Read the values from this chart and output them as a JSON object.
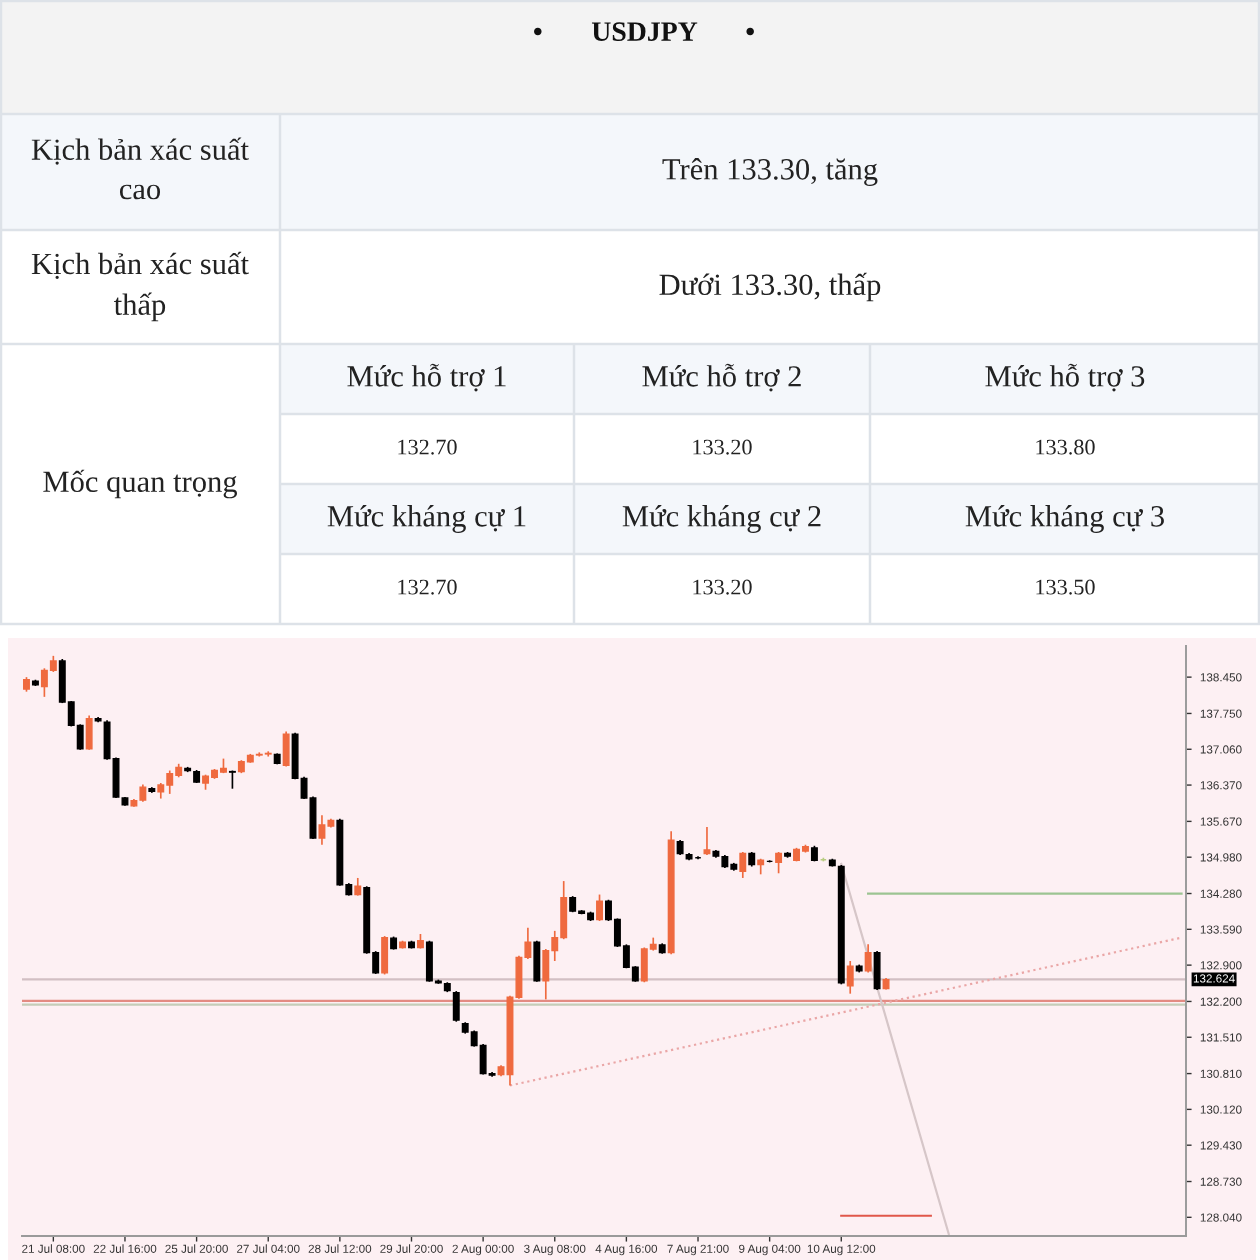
{
  "chart_data": [
    {
      "type": "other",
      "title": "•       USDJPY       •",
      "annotations": [
        "Kịch bản xác suất cao",
        "Trên 133.30, tăng",
        "Kịch bản xác suất thấp",
        "Dưới 133.30, thấp",
        "Mốc quan trọng",
        "Mức hỗ trợ 1",
        "Mức hỗ trợ 2",
        "Mức hỗ trợ 3",
        "132.70",
        "133.20",
        "133.80",
        "Mức kháng cự 1",
        "Mức kháng cự 2",
        "Mức kháng cự 3",
        "132.70",
        "133.20",
        "133.50"
      ]
    },
    {
      "type": "candlestick",
      "categories": [
        null,
        null,
        null,
        "21 Jul 08:00",
        null,
        null,
        null,
        null,
        null,
        null,
        null,
        "22 Jul 16:00",
        null,
        null,
        null,
        null,
        null,
        null,
        null,
        "25 Jul 20:00",
        null,
        null,
        null,
        null,
        null,
        null,
        null,
        "27 Jul 04:00",
        null,
        null,
        null,
        null,
        null,
        null,
        null,
        "28 Jul 12:00",
        null,
        null,
        null,
        null,
        null,
        null,
        null,
        "29 Jul 20:00",
        null,
        null,
        null,
        null,
        null,
        null,
        null,
        "2 Aug 00:00",
        null,
        null,
        null,
        null,
        null,
        null,
        null,
        "3 Aug 08:00",
        null,
        null,
        null,
        null,
        null,
        null,
        null,
        "4 Aug 16:00",
        null,
        null,
        null,
        null,
        null,
        null,
        null,
        "7 Aug 21:00",
        null,
        null,
        null,
        null,
        null,
        null,
        null,
        "9 Aug 04:00",
        null,
        null,
        null,
        null,
        null,
        null,
        null,
        "10 Aug 12:00",
        null,
        null,
        null,
        null,
        null,
        null,
        null,
        null,
        null,
        null,
        null,
        null,
        null,
        null,
        null,
        null,
        null,
        null,
        null,
        null,
        null,
        null,
        null,
        null,
        null,
        null,
        null,
        null,
        null,
        null,
        null,
        null,
        null,
        null,
        null,
        null,
        null,
        null
      ],
      "ohlc": [
        [
          138.22,
          138.45,
          138.17,
          138.4
        ],
        [
          138.37,
          138.4,
          138.28,
          138.3
        ],
        [
          138.27,
          138.62,
          138.07,
          138.58
        ],
        [
          138.58,
          138.86,
          138.55,
          138.76
        ],
        [
          138.76,
          138.8,
          137.95,
          137.97
        ],
        [
          137.97,
          137.99,
          137.5,
          137.52
        ],
        [
          137.52,
          137.54,
          137.05,
          137.07
        ],
        [
          137.07,
          137.71,
          137.05,
          137.65
        ],
        [
          137.65,
          137.68,
          137.58,
          137.61
        ],
        [
          137.58,
          137.62,
          136.86,
          136.88
        ],
        [
          136.88,
          136.9,
          136.12,
          136.14
        ],
        [
          136.12,
          136.14,
          135.97,
          135.99
        ],
        [
          135.97,
          136.1,
          135.95,
          136.07
        ],
        [
          136.08,
          136.38,
          136.05,
          136.33
        ],
        [
          136.3,
          136.33,
          136.22,
          136.25
        ],
        [
          136.24,
          136.41,
          136.11,
          136.37
        ],
        [
          136.37,
          136.65,
          136.2,
          136.59
        ],
        [
          136.56,
          136.78,
          136.52,
          136.71
        ],
        [
          136.69,
          136.72,
          136.62,
          136.65
        ],
        [
          136.63,
          136.66,
          136.41,
          136.43
        ],
        [
          136.41,
          136.57,
          136.28,
          136.54
        ],
        [
          136.52,
          136.68,
          136.49,
          136.65
        ],
        [
          136.62,
          136.88,
          136.6,
          136.69
        ],
        [
          136.63,
          136.65,
          136.3,
          136.62
        ],
        [
          136.63,
          136.85,
          136.6,
          136.82
        ],
        [
          136.82,
          136.97,
          136.8,
          136.94
        ],
        [
          136.95,
          137.0,
          136.92,
          136.96
        ],
        [
          136.97,
          137.02,
          136.92,
          136.98
        ],
        [
          136.96,
          136.98,
          136.77,
          136.79
        ],
        [
          136.75,
          137.4,
          136.73,
          137.35
        ],
        [
          137.35,
          137.38,
          136.48,
          136.5
        ],
        [
          136.5,
          136.53,
          136.1,
          136.12
        ],
        [
          136.12,
          136.15,
          135.33,
          135.35
        ],
        [
          135.35,
          135.79,
          135.22,
          135.6
        ],
        [
          135.58,
          135.72,
          135.55,
          135.69
        ],
        [
          135.69,
          135.72,
          134.43,
          134.45
        ],
        [
          134.45,
          134.48,
          134.24,
          134.26
        ],
        [
          134.26,
          134.58,
          134.24,
          134.42
        ],
        [
          134.39,
          134.42,
          133.12,
          133.14
        ],
        [
          133.14,
          133.17,
          132.73,
          132.75
        ],
        [
          132.75,
          133.46,
          132.72,
          133.43
        ],
        [
          133.42,
          133.45,
          133.2,
          133.22
        ],
        [
          133.24,
          133.37,
          133.22,
          133.34
        ],
        [
          133.34,
          133.37,
          133.22,
          133.24
        ],
        [
          133.24,
          133.5,
          133.22,
          133.37
        ],
        [
          133.34,
          133.37,
          132.58,
          132.6
        ],
        [
          132.59,
          132.62,
          132.54,
          132.56
        ],
        [
          132.54,
          132.57,
          132.38,
          132.41
        ],
        [
          132.37,
          132.4,
          131.81,
          131.84
        ],
        [
          131.77,
          131.8,
          131.58,
          131.61
        ],
        [
          131.61,
          131.64,
          131.33,
          131.35
        ],
        [
          131.35,
          131.38,
          130.79,
          130.81
        ],
        [
          130.81,
          130.84,
          130.75,
          130.78
        ],
        [
          130.79,
          130.97,
          130.76,
          130.94
        ],
        [
          130.79,
          132.31,
          130.58,
          132.28
        ],
        [
          132.28,
          133.08,
          132.25,
          133.05
        ],
        [
          133.05,
          133.62,
          133.02,
          133.34
        ],
        [
          133.34,
          133.37,
          132.58,
          132.6
        ],
        [
          132.6,
          133.21,
          132.24,
          133.18
        ],
        [
          133.18,
          133.56,
          132.98,
          133.43
        ],
        [
          133.43,
          134.52,
          133.4,
          134.2
        ],
        [
          134.2,
          134.23,
          133.92,
          133.94
        ],
        [
          133.94,
          133.96,
          133.88,
          133.9
        ],
        [
          133.9,
          133.93,
          133.75,
          133.78
        ],
        [
          133.78,
          134.26,
          133.75,
          134.13
        ],
        [
          134.13,
          134.16,
          133.75,
          133.78
        ],
        [
          133.78,
          133.8,
          133.25,
          133.27
        ],
        [
          133.27,
          133.3,
          132.84,
          132.86
        ],
        [
          132.86,
          132.88,
          132.58,
          132.6
        ],
        [
          132.6,
          133.24,
          132.57,
          133.21
        ],
        [
          133.21,
          133.43,
          133.18,
          133.3
        ],
        [
          133.29,
          133.32,
          133.12,
          133.14
        ],
        [
          133.14,
          135.48,
          133.11,
          135.31
        ],
        [
          135.28,
          135.31,
          135.02,
          135.05
        ],
        [
          135.03,
          135.06,
          134.92,
          134.95
        ],
        [
          134.97,
          135.0,
          134.94,
          134.97
        ],
        [
          135.05,
          135.56,
          135.02,
          135.12
        ],
        [
          135.09,
          135.12,
          134.97,
          135.0
        ],
        [
          134.99,
          135.02,
          134.77,
          134.8
        ],
        [
          134.84,
          134.87,
          134.72,
          134.75
        ],
        [
          134.71,
          135.08,
          134.58,
          135.05
        ],
        [
          135.05,
          135.08,
          134.8,
          134.84
        ],
        [
          134.84,
          134.95,
          134.65,
          134.92
        ],
        [
          134.9,
          134.92,
          134.88,
          134.9
        ],
        [
          134.88,
          135.08,
          134.67,
          135.05
        ],
        [
          135.05,
          135.08,
          134.97,
          135.0
        ],
        [
          134.92,
          135.16,
          134.9,
          135.13
        ],
        [
          135.1,
          135.22,
          135.07,
          135.18
        ],
        [
          135.16,
          135.2,
          134.9,
          134.92
        ],
        [
          134.93,
          134.97,
          134.9,
          134.93
        ],
        [
          134.92,
          134.95,
          134.8,
          134.82
        ],
        [
          134.8,
          134.83,
          132.53,
          132.56
        ],
        [
          132.5,
          132.98,
          132.35,
          132.88
        ],
        [
          132.88,
          132.91,
          132.76,
          132.79
        ],
        [
          132.79,
          133.3,
          132.76,
          133.14
        ],
        [
          133.14,
          133.17,
          132.42,
          132.45
        ],
        [
          132.45,
          132.65,
          132.43,
          132.62
        ],
        null,
        null,
        null,
        null,
        null,
        null,
        null,
        null,
        null,
        null,
        null,
        null,
        null,
        null,
        null,
        null,
        null,
        null,
        null,
        null,
        null,
        null,
        null,
        null,
        null,
        null,
        null,
        null,
        null,
        null,
        null,
        null,
        null
      ],
      "colors": [
        "#ef6a3f",
        "#000000",
        "#ef6a3f",
        "#ef6a3f",
        "#000000",
        "#000000",
        "#000000",
        "#ef6a3f",
        "#000000",
        "#000000",
        "#000000",
        "#000000",
        "#ef6a3f",
        "#ef6a3f",
        "#000000",
        "#ef6a3f",
        "#ef6a3f",
        "#ef6a3f",
        "#000000",
        "#000000",
        "#ef6a3f",
        "#ef6a3f",
        "#ef6a3f",
        "#000000",
        "#ef6a3f",
        "#ef6a3f",
        "#ef6a3f",
        "#ef6a3f",
        "#000000",
        "#ef6a3f",
        "#000000",
        "#000000",
        "#000000",
        "#ef6a3f",
        "#ef6a3f",
        "#000000",
        "#000000",
        "#ef6a3f",
        "#000000",
        "#000000",
        "#ef6a3f",
        "#000000",
        "#ef6a3f",
        "#000000",
        "#ef6a3f",
        "#000000",
        "#000000",
        "#000000",
        "#000000",
        "#000000",
        "#000000",
        "#000000",
        "#000000",
        "#ef6a3f",
        "#ef6a3f",
        "#ef6a3f",
        "#ef6a3f",
        "#000000",
        "#ef6a3f",
        "#ef6a3f",
        "#ef6a3f",
        "#000000",
        "#000000",
        "#000000",
        "#ef6a3f",
        "#000000",
        "#000000",
        "#000000",
        "#000000",
        "#ef6a3f",
        "#ef6a3f",
        "#000000",
        "#ef6a3f",
        "#000000",
        "#000000",
        "#000000",
        "#ef6a3f",
        "#000000",
        "#000000",
        "#000000",
        "#ef6a3f",
        "#000000",
        "#ef6a3f",
        "#000000",
        "#ef6a3f",
        "#000000",
        "#ef6a3f",
        "#ef6a3f",
        "#000000",
        "#b8cc80",
        "#000000",
        "#000000",
        "#ef6a3f",
        "#000000",
        "#ef6a3f",
        "#000000",
        "#ef6a3f",
        null,
        null,
        null,
        null,
        null,
        null,
        null,
        null,
        null,
        null,
        null,
        null,
        null,
        null,
        null,
        null,
        null,
        null,
        null,
        null,
        null,
        null,
        null,
        null,
        null,
        null,
        null,
        null,
        null,
        null,
        null,
        null,
        null
      ],
      "ylim": [
        127.68,
        139.05
      ],
      "yticks": [
        {
          "value": 138.45,
          "label": "138.450"
        },
        {
          "value": 137.75,
          "label": "137.750"
        },
        {
          "value": 137.06,
          "label": "137.060"
        },
        {
          "value": 136.37,
          "label": "136.370"
        },
        {
          "value": 135.67,
          "label": "135.670"
        },
        {
          "value": 134.98,
          "label": "134.980"
        },
        {
          "value": 134.28,
          "label": "134.280"
        },
        {
          "value": 133.59,
          "label": "133.590"
        },
        {
          "value": 132.9,
          "label": "132.900"
        },
        {
          "value": 132.2,
          "label": "132.200"
        },
        {
          "value": 131.51,
          "label": "131.510"
        },
        {
          "value": 130.81,
          "label": "130.810"
        },
        {
          "value": 130.12,
          "label": "130.120"
        },
        {
          "value": 129.43,
          "label": "129.430"
        },
        {
          "value": 128.73,
          "label": "128.730"
        },
        {
          "value": 128.04,
          "label": "128.040"
        }
      ],
      "ref_lines": [
        {
          "axis": "y",
          "value": 132.624,
          "label": "132.624",
          "color": "#d2bfc3"
        },
        {
          "axis": "y",
          "value": 132.21,
          "color": "#e38b82"
        },
        {
          "axis": "y",
          "value": 132.14,
          "color": "#c5cdb8"
        }
      ],
      "series": [
        {
          "type": "line",
          "color": "#9cc492",
          "line_style": "solid",
          "values": [
            null,
            null,
            null,
            null,
            null,
            null,
            null,
            null,
            null,
            null,
            null,
            null,
            null,
            null,
            null,
            null,
            null,
            null,
            null,
            null,
            null,
            null,
            null,
            null,
            null,
            null,
            null,
            null,
            null,
            null,
            null,
            null,
            null,
            null,
            null,
            null,
            null,
            null,
            null,
            null,
            null,
            null,
            null,
            null,
            null,
            null,
            null,
            null,
            null,
            null,
            null,
            null,
            null,
            null,
            null,
            null,
            null,
            null,
            null,
            null,
            null,
            null,
            null,
            null,
            null,
            null,
            null,
            null,
            null,
            null,
            null,
            null,
            null,
            null,
            null,
            null,
            null,
            null,
            null,
            null,
            null,
            null,
            null,
            null,
            null,
            null,
            null,
            null,
            null,
            null,
            null,
            null,
            null,
            null,
            134.28,
            null,
            null,
            null,
            null,
            null,
            null,
            null,
            null,
            null,
            null,
            null,
            null,
            null,
            null,
            null,
            null,
            null,
            null,
            null,
            null,
            null,
            null,
            null,
            null,
            null,
            null,
            null,
            null,
            null,
            null,
            null,
            null,
            null,
            null,
            134.28
          ]
        },
        {
          "type": "line",
          "color": "#e0574a",
          "line_style": "solid",
          "values": [
            null,
            null,
            null,
            null,
            null,
            null,
            null,
            null,
            null,
            null,
            null,
            null,
            null,
            null,
            null,
            null,
            null,
            null,
            null,
            null,
            null,
            null,
            null,
            null,
            null,
            null,
            null,
            null,
            null,
            null,
            null,
            null,
            null,
            null,
            null,
            null,
            null,
            null,
            null,
            null,
            null,
            null,
            null,
            null,
            null,
            null,
            null,
            null,
            null,
            null,
            null,
            null,
            null,
            null,
            null,
            null,
            null,
            null,
            null,
            null,
            null,
            null,
            null,
            null,
            null,
            null,
            null,
            null,
            null,
            null,
            null,
            null,
            null,
            null,
            null,
            null,
            null,
            null,
            null,
            null,
            null,
            null,
            null,
            null,
            null,
            null,
            null,
            null,
            null,
            null,
            null,
            128.07,
            null,
            null,
            null,
            null,
            null,
            null,
            null,
            null,
            null,
            128.07,
            null,
            null,
            null,
            null,
            null,
            null,
            null,
            null,
            null,
            null,
            null,
            null,
            null,
            null,
            null,
            null,
            null,
            null,
            null,
            null,
            null,
            null,
            null,
            null,
            null,
            null,
            null,
            null
          ]
        },
        {
          "type": "line",
          "color": "#eaa6a6",
          "line_style": "dotted",
          "values": [
            null,
            null,
            null,
            null,
            null,
            null,
            null,
            null,
            null,
            null,
            null,
            null,
            null,
            null,
            null,
            null,
            null,
            null,
            null,
            null,
            null,
            null,
            null,
            null,
            null,
            null,
            null,
            null,
            null,
            null,
            null,
            null,
            null,
            null,
            null,
            null,
            null,
            null,
            null,
            null,
            null,
            null,
            null,
            null,
            null,
            null,
            null,
            null,
            null,
            null,
            null,
            null,
            null,
            null,
            130.58,
            null,
            null,
            null,
            null,
            null,
            null,
            null,
            null,
            null,
            null,
            null,
            null,
            null,
            null,
            null,
            null,
            null,
            null,
            null,
            null,
            null,
            null,
            null,
            null,
            null,
            null,
            null,
            null,
            null,
            null,
            null,
            null,
            null,
            null,
            null,
            null,
            null,
            null,
            null,
            null,
            null,
            null,
            null,
            null,
            null,
            null,
            null,
            null,
            null,
            null,
            null,
            null,
            null,
            null,
            null,
            null,
            null,
            null,
            null,
            null,
            null,
            null,
            null,
            null,
            null,
            null,
            null,
            null,
            null,
            null,
            null,
            null,
            null,
            null,
            133.43
          ]
        },
        {
          "type": "line",
          "color": "#d6c6c8",
          "line_style": "solid",
          "values": [
            null,
            null,
            null,
            null,
            null,
            null,
            null,
            null,
            null,
            null,
            null,
            null,
            null,
            null,
            null,
            null,
            null,
            null,
            null,
            null,
            null,
            null,
            null,
            null,
            null,
            null,
            null,
            null,
            null,
            null,
            null,
            null,
            null,
            null,
            null,
            null,
            null,
            null,
            null,
            null,
            null,
            null,
            null,
            null,
            null,
            null,
            null,
            null,
            null,
            null,
            null,
            null,
            null,
            null,
            null,
            null,
            null,
            null,
            null,
            null,
            null,
            null,
            null,
            null,
            null,
            null,
            null,
            null,
            null,
            null,
            null,
            null,
            null,
            null,
            null,
            null,
            null,
            null,
            null,
            null,
            null,
            null,
            null,
            null,
            null,
            null,
            null,
            null,
            null,
            null,
            null,
            134.85,
            null,
            null,
            null,
            null,
            null,
            null,
            null,
            null,
            null,
            null,
            null,
            127.72,
            null,
            null,
            null,
            null,
            null,
            null,
            null,
            null,
            null,
            null,
            null,
            null,
            null,
            null,
            null,
            null,
            null,
            null,
            null,
            null,
            null,
            null,
            null,
            null,
            null,
            null
          ]
        }
      ]
    }
  ]
}
